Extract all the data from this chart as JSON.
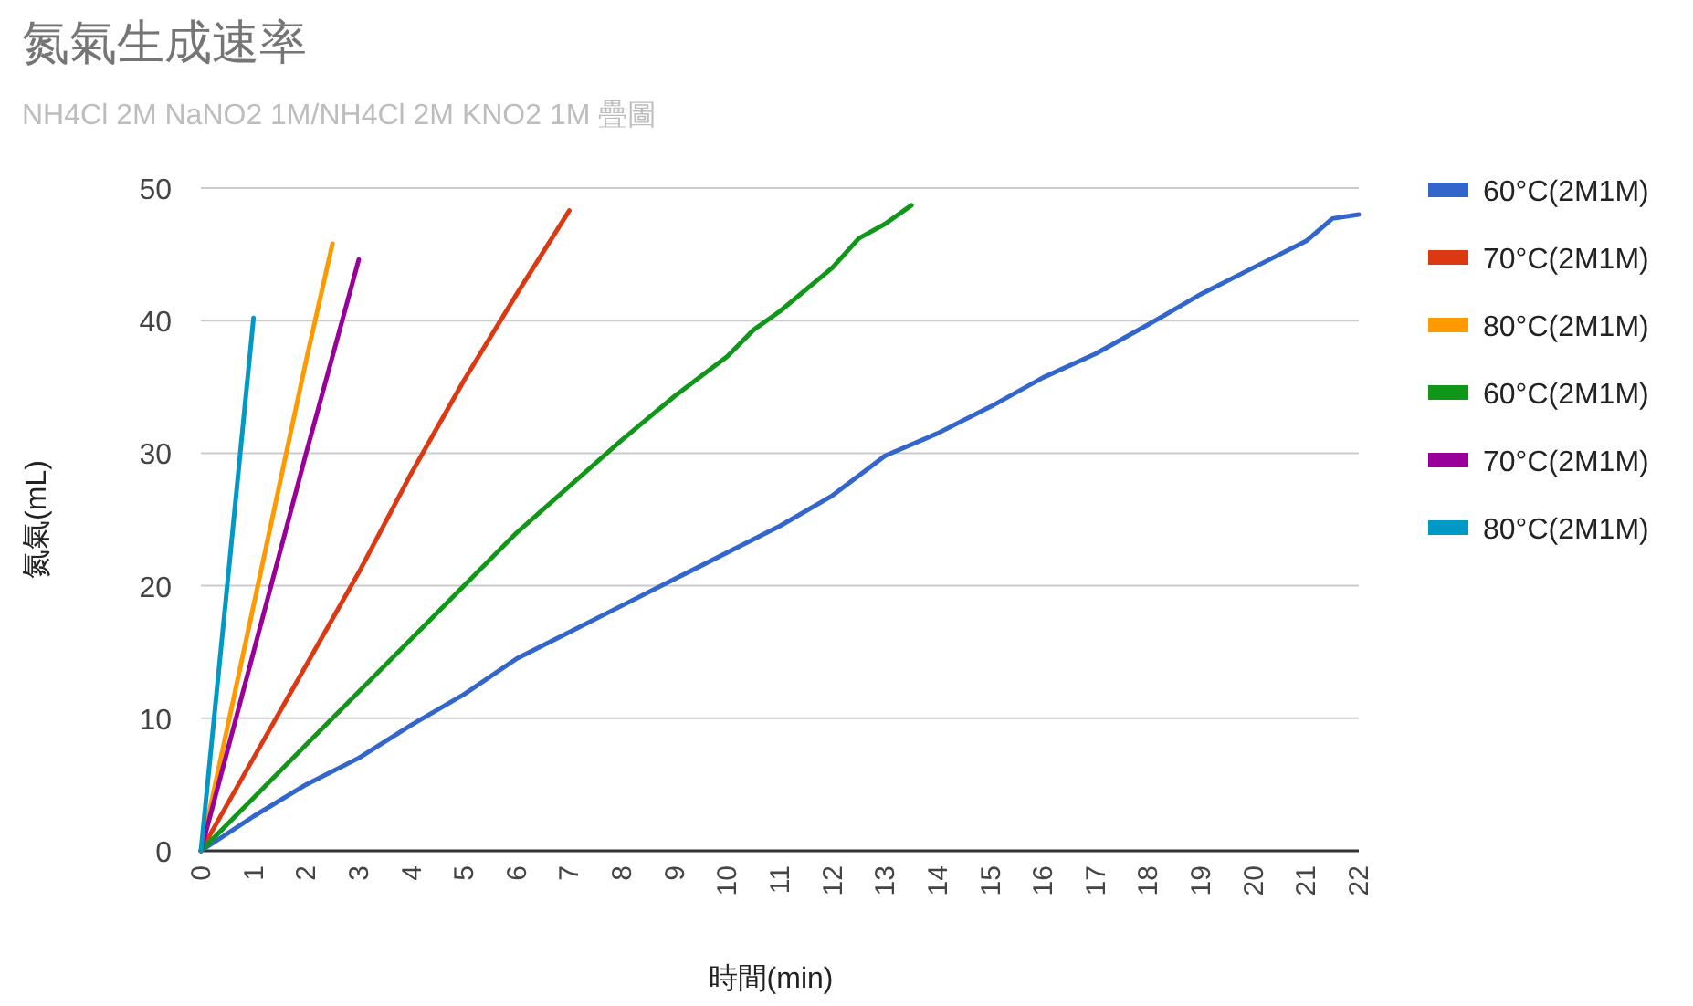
{
  "chart_data": {
    "type": "line",
    "title": "氮氣生成速率",
    "subtitle": "NH4Cl 2M NaNO2 1M/NH4Cl 2M KNO2 1M 疊圖",
    "xlabel": "時間(min)",
    "ylabel": "氮氣(mL)",
    "xlim": [
      0,
      22
    ],
    "xticks": [
      0,
      1,
      2,
      3,
      4,
      5,
      6,
      7,
      8,
      9,
      10,
      11,
      12,
      13,
      14,
      15,
      16,
      17,
      18,
      19,
      20,
      21,
      22
    ],
    "ylim": [
      0,
      50
    ],
    "yticks": [
      0,
      10,
      20,
      30,
      40,
      50
    ],
    "grid": "y",
    "legend": "right",
    "marker": "none",
    "line_style": "solid",
    "series": [
      {
        "name": "60°C(2M1M)",
        "color": "#3366cc",
        "x": [
          0,
          1,
          2,
          3,
          4,
          5,
          6,
          7,
          8,
          9,
          10,
          11,
          12,
          13,
          14,
          15,
          16,
          17,
          18,
          19,
          20,
          21,
          21.5,
          22
        ],
        "values": [
          0,
          2.6,
          5,
          7,
          9.5,
          11.8,
          14.5,
          16.5,
          18.5,
          20.5,
          22.5,
          24.5,
          26.8,
          29.8,
          31.5,
          33.5,
          35.7,
          37.5,
          39.7,
          42,
          44,
          46,
          47.7,
          48
        ]
      },
      {
        "name": "70°C(2M1M)",
        "color": "#dc3912",
        "x": [
          0,
          1,
          2,
          3,
          4,
          5,
          6,
          7
        ],
        "values": [
          0,
          7,
          14,
          21,
          28.5,
          35.5,
          42,
          48.3
        ]
      },
      {
        "name": "80°C(2M1M)",
        "color": "#ff9900",
        "x": [
          0,
          1,
          2,
          2.5
        ],
        "values": [
          0,
          18.5,
          37,
          45.8
        ]
      },
      {
        "name": "60°C(2M1M)",
        "color": "#109618",
        "x": [
          0,
          1,
          2,
          3,
          4,
          5,
          6,
          7,
          8,
          9,
          10,
          10.5,
          11,
          12,
          12.5,
          13,
          13.5
        ],
        "values": [
          0,
          4,
          8,
          12,
          16,
          20,
          24,
          27.5,
          31,
          34.3,
          37.3,
          39.3,
          40.7,
          44,
          46.2,
          47.3,
          48.7
        ]
      },
      {
        "name": "70°C(2M1M)",
        "color": "#990099",
        "x": [
          0,
          1,
          2,
          3
        ],
        "values": [
          0,
          15,
          30,
          44.6
        ]
      },
      {
        "name": "80°C(2M1M)",
        "color": "#0099c6",
        "x": [
          0,
          0.5,
          1
        ],
        "values": [
          0,
          20,
          40.2
        ]
      }
    ]
  }
}
